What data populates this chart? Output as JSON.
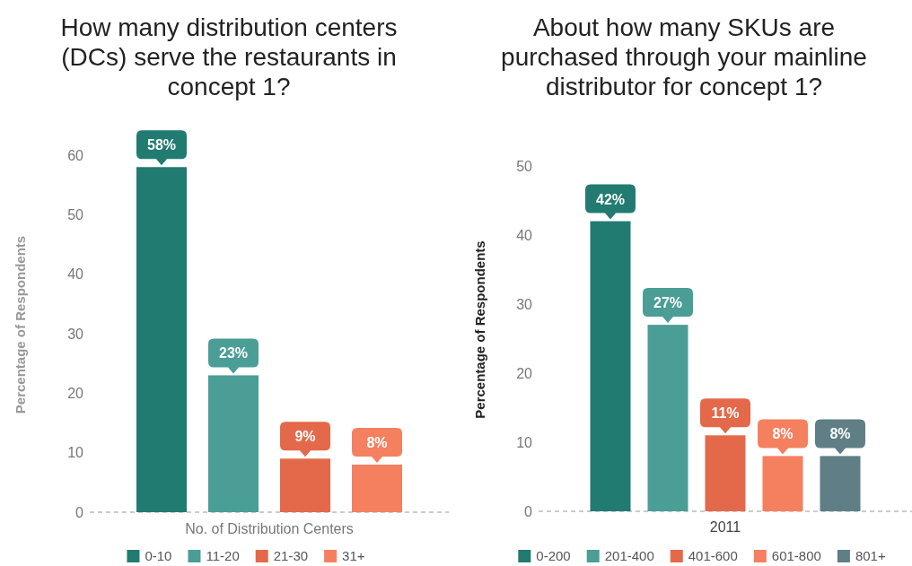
{
  "chart_data": [
    {
      "type": "bar",
      "title": "How many distribution centers (DCs) serve the restaurants in concept 1?",
      "xlabel": "No. of Distribution Centers",
      "ylabel": "Percentage of Respondents",
      "categories": [
        null
      ],
      "ylim": [
        0,
        60
      ],
      "yticks": [
        0,
        10,
        20,
        30,
        40,
        50,
        60
      ],
      "grid": false,
      "legend": "bottom",
      "series": [
        {
          "name": "0-10",
          "color": "#217b71",
          "values": [
            58
          ],
          "value_labels": [
            "58%"
          ]
        },
        {
          "name": "11-20",
          "color": "#4a9e96",
          "values": [
            23
          ],
          "value_labels": [
            "23%"
          ]
        },
        {
          "name": "21-30",
          "color": "#e4694a",
          "values": [
            9
          ],
          "value_labels": [
            "9%"
          ]
        },
        {
          "name": "31+",
          "color": "#f4805f",
          "values": [
            8
          ],
          "value_labels": [
            "8%"
          ]
        }
      ]
    },
    {
      "type": "bar",
      "title": "About how many SKUs are purchased through your mainline distributor for concept 1?",
      "ylabel": "Percentage of Respondents",
      "categories": [
        "2011"
      ],
      "ylim": [
        0,
        50
      ],
      "yticks": [
        0,
        10,
        20,
        30,
        40,
        50
      ],
      "grid": false,
      "legend": "bottom",
      "series": [
        {
          "name": "0-200",
          "color": "#217b71",
          "values": [
            42
          ],
          "value_labels": [
            "42%"
          ]
        },
        {
          "name": "201-400",
          "color": "#4a9e96",
          "values": [
            27
          ],
          "value_labels": [
            "27%"
          ]
        },
        {
          "name": "401-600",
          "color": "#e4694a",
          "values": [
            11
          ],
          "value_labels": [
            "11%"
          ]
        },
        {
          "name": "601-800",
          "color": "#f4805f",
          "values": [
            8
          ],
          "value_labels": [
            "8%"
          ]
        },
        {
          "name": "801+",
          "color": "#5f7e85",
          "values": [
            8
          ],
          "value_labels": [
            "8%"
          ]
        }
      ]
    }
  ]
}
